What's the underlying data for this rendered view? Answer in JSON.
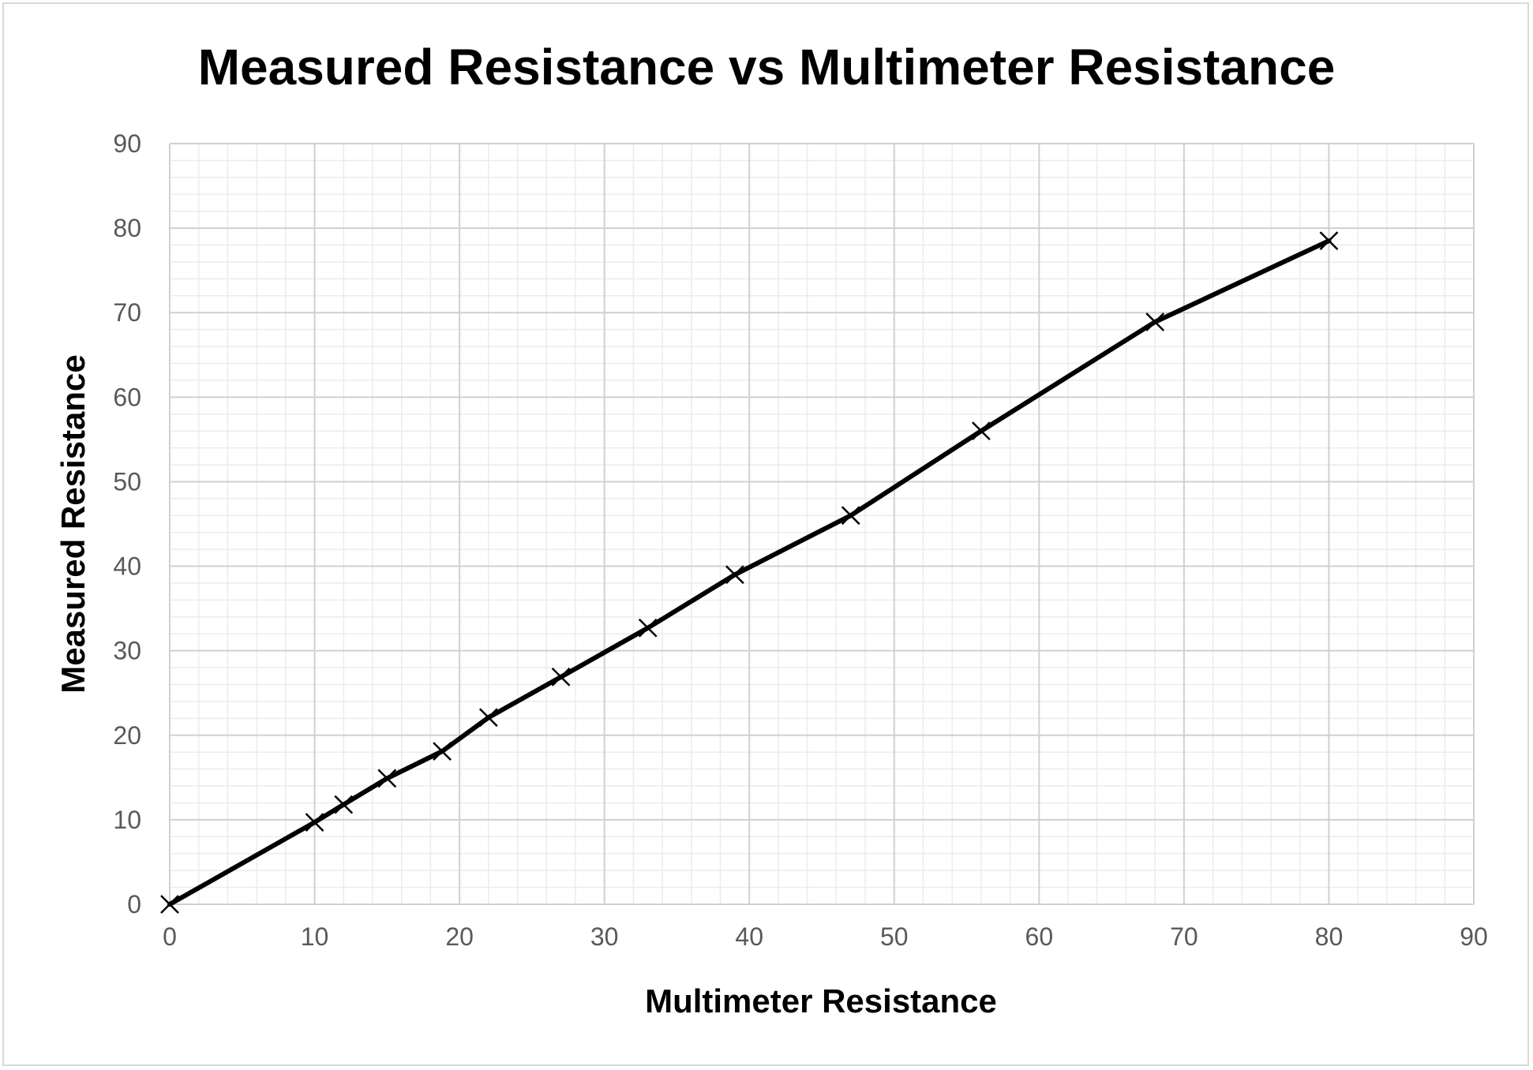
{
  "chart_data": {
    "type": "scatter",
    "title": "Measured Resistance vs Multimeter Resistance",
    "xlabel": "Multimeter Resistance",
    "ylabel": "Measured Resistance",
    "xlim": [
      0,
      90
    ],
    "ylim": [
      0,
      90
    ],
    "x_ticks": [
      0,
      10,
      20,
      30,
      40,
      50,
      60,
      70,
      80,
      90
    ],
    "y_ticks": [
      0,
      10,
      20,
      30,
      40,
      50,
      60,
      70,
      80,
      90
    ],
    "grid": "major and minor",
    "legend": "none",
    "marker": "x",
    "line": "straight segments",
    "series": [
      {
        "x": [
          0,
          10,
          12,
          15,
          18.8,
          22,
          27,
          33,
          39,
          47,
          56,
          68,
          80
        ],
        "y": [
          0,
          9.7,
          11.8,
          14.9,
          18.1,
          22.1,
          26.9,
          32.7,
          39,
          46,
          56,
          68.9,
          78.5
        ],
        "color": "#000000"
      }
    ]
  }
}
